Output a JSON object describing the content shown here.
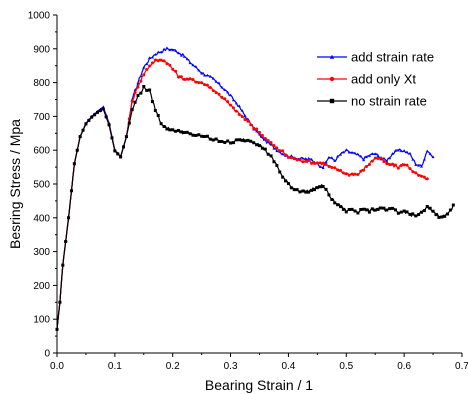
{
  "chart_data": {
    "type": "line",
    "xlabel": "Bearing Strain / 1",
    "ylabel": "Besring Stress / Mpa",
    "xlim": [
      0.0,
      0.7
    ],
    "ylim": [
      0,
      1000
    ],
    "xticks": [
      "0.0",
      "0.1",
      "0.2",
      "0.3",
      "0.4",
      "0.5",
      "0.6",
      "0.7"
    ],
    "yticks": [
      "0",
      "100",
      "200",
      "300",
      "400",
      "500",
      "600",
      "700",
      "800",
      "900",
      "1000"
    ],
    "grid": false,
    "legend_position": "top-right",
    "series": [
      {
        "name": "add strain rate",
        "color": "#0000ff",
        "marker": "triangle",
        "points": [
          [
            0.0,
            70
          ],
          [
            0.005,
            150
          ],
          [
            0.01,
            260
          ],
          [
            0.02,
            400
          ],
          [
            0.03,
            560
          ],
          [
            0.04,
            640
          ],
          [
            0.05,
            680
          ],
          [
            0.06,
            700
          ],
          [
            0.07,
            715
          ],
          [
            0.08,
            728
          ],
          [
            0.09,
            680
          ],
          [
            0.1,
            600
          ],
          [
            0.11,
            582
          ],
          [
            0.12,
            640
          ],
          [
            0.13,
            750
          ],
          [
            0.14,
            800
          ],
          [
            0.15,
            845
          ],
          [
            0.16,
            870
          ],
          [
            0.17,
            885
          ],
          [
            0.18,
            892
          ],
          [
            0.19,
            900
          ],
          [
            0.2,
            898
          ],
          [
            0.21,
            890
          ],
          [
            0.22,
            878
          ],
          [
            0.23,
            860
          ],
          [
            0.24,
            845
          ],
          [
            0.25,
            830
          ],
          [
            0.26,
            820
          ],
          [
            0.27,
            810
          ],
          [
            0.28,
            795
          ],
          [
            0.29,
            780
          ],
          [
            0.3,
            760
          ],
          [
            0.31,
            740
          ],
          [
            0.32,
            715
          ],
          [
            0.33,
            690
          ],
          [
            0.34,
            665
          ],
          [
            0.35,
            645
          ],
          [
            0.36,
            628
          ],
          [
            0.37,
            615
          ],
          [
            0.38,
            602
          ],
          [
            0.39,
            590
          ],
          [
            0.4,
            582
          ],
          [
            0.42,
            575
          ],
          [
            0.44,
            572
          ],
          [
            0.45,
            560
          ],
          [
            0.46,
            550
          ],
          [
            0.47,
            580
          ],
          [
            0.48,
            570
          ],
          [
            0.49,
            588
          ],
          [
            0.5,
            598
          ],
          [
            0.51,
            592
          ],
          [
            0.52,
            585
          ],
          [
            0.53,
            575
          ],
          [
            0.54,
            585
          ],
          [
            0.55,
            590
          ],
          [
            0.56,
            575
          ],
          [
            0.57,
            570
          ],
          [
            0.58,
            590
          ],
          [
            0.59,
            600
          ],
          [
            0.6,
            598
          ],
          [
            0.61,
            588
          ],
          [
            0.62,
            560
          ],
          [
            0.63,
            552
          ],
          [
            0.64,
            600
          ],
          [
            0.645,
            590
          ],
          [
            0.65,
            580
          ]
        ]
      },
      {
        "name": "add only Xt",
        "color": "#ff0000",
        "marker": "circle",
        "points": [
          [
            0.0,
            70
          ],
          [
            0.005,
            150
          ],
          [
            0.01,
            260
          ],
          [
            0.02,
            400
          ],
          [
            0.03,
            560
          ],
          [
            0.04,
            640
          ],
          [
            0.05,
            678
          ],
          [
            0.06,
            698
          ],
          [
            0.07,
            712
          ],
          [
            0.08,
            722
          ],
          [
            0.09,
            675
          ],
          [
            0.1,
            598
          ],
          [
            0.11,
            580
          ],
          [
            0.12,
            640
          ],
          [
            0.13,
            745
          ],
          [
            0.14,
            790
          ],
          [
            0.15,
            825
          ],
          [
            0.16,
            850
          ],
          [
            0.17,
            865
          ],
          [
            0.18,
            868
          ],
          [
            0.19,
            860
          ],
          [
            0.2,
            840
          ],
          [
            0.21,
            820
          ],
          [
            0.22,
            810
          ],
          [
            0.23,
            808
          ],
          [
            0.24,
            805
          ],
          [
            0.25,
            800
          ],
          [
            0.26,
            790
          ],
          [
            0.27,
            780
          ],
          [
            0.28,
            765
          ],
          [
            0.29,
            750
          ],
          [
            0.3,
            732
          ],
          [
            0.31,
            715
          ],
          [
            0.32,
            700
          ],
          [
            0.33,
            685
          ],
          [
            0.34,
            668
          ],
          [
            0.35,
            652
          ],
          [
            0.36,
            635
          ],
          [
            0.37,
            620
          ],
          [
            0.38,
            605
          ],
          [
            0.39,
            595
          ],
          [
            0.4,
            580
          ],
          [
            0.42,
            570
          ],
          [
            0.44,
            565
          ],
          [
            0.46,
            560
          ],
          [
            0.48,
            545
          ],
          [
            0.5,
            530
          ],
          [
            0.52,
            528
          ],
          [
            0.54,
            560
          ],
          [
            0.55,
            578
          ],
          [
            0.56,
            575
          ],
          [
            0.57,
            560
          ],
          [
            0.58,
            555
          ],
          [
            0.59,
            550
          ],
          [
            0.6,
            560
          ],
          [
            0.61,
            548
          ],
          [
            0.62,
            530
          ],
          [
            0.63,
            522
          ],
          [
            0.64,
            515
          ]
        ]
      },
      {
        "name": "no strain rate",
        "color": "#000000",
        "marker": "square",
        "points": [
          [
            0.0,
            70
          ],
          [
            0.005,
            150
          ],
          [
            0.01,
            260
          ],
          [
            0.02,
            400
          ],
          [
            0.03,
            560
          ],
          [
            0.04,
            640
          ],
          [
            0.05,
            678
          ],
          [
            0.06,
            698
          ],
          [
            0.07,
            712
          ],
          [
            0.08,
            722
          ],
          [
            0.09,
            675
          ],
          [
            0.1,
            598
          ],
          [
            0.11,
            580
          ],
          [
            0.12,
            640
          ],
          [
            0.13,
            720
          ],
          [
            0.14,
            760
          ],
          [
            0.15,
            785
          ],
          [
            0.16,
            775
          ],
          [
            0.17,
            720
          ],
          [
            0.18,
            680
          ],
          [
            0.19,
            665
          ],
          [
            0.2,
            660
          ],
          [
            0.21,
            655
          ],
          [
            0.22,
            652
          ],
          [
            0.23,
            648
          ],
          [
            0.24,
            645
          ],
          [
            0.25,
            640
          ],
          [
            0.26,
            638
          ],
          [
            0.27,
            632
          ],
          [
            0.28,
            628
          ],
          [
            0.29,
            625
          ],
          [
            0.3,
            622
          ],
          [
            0.31,
            628
          ],
          [
            0.32,
            632
          ],
          [
            0.33,
            630
          ],
          [
            0.34,
            625
          ],
          [
            0.35,
            615
          ],
          [
            0.36,
            600
          ],
          [
            0.37,
            580
          ],
          [
            0.38,
            555
          ],
          [
            0.39,
            520
          ],
          [
            0.4,
            500
          ],
          [
            0.41,
            485
          ],
          [
            0.42,
            480
          ],
          [
            0.43,
            478
          ],
          [
            0.44,
            482
          ],
          [
            0.45,
            492
          ],
          [
            0.46,
            495
          ],
          [
            0.47,
            468
          ],
          [
            0.48,
            445
          ],
          [
            0.49,
            435
          ],
          [
            0.5,
            420
          ],
          [
            0.51,
            425
          ],
          [
            0.52,
            418
          ],
          [
            0.53,
            428
          ],
          [
            0.54,
            420
          ],
          [
            0.55,
            425
          ],
          [
            0.56,
            432
          ],
          [
            0.57,
            420
          ],
          [
            0.58,
            428
          ],
          [
            0.59,
            412
          ],
          [
            0.6,
            420
          ],
          [
            0.61,
            410
          ],
          [
            0.62,
            405
          ],
          [
            0.63,
            415
          ],
          [
            0.64,
            430
          ],
          [
            0.65,
            420
          ],
          [
            0.66,
            405
          ],
          [
            0.67,
            405
          ],
          [
            0.68,
            420
          ],
          [
            0.685,
            438
          ]
        ]
      }
    ]
  }
}
